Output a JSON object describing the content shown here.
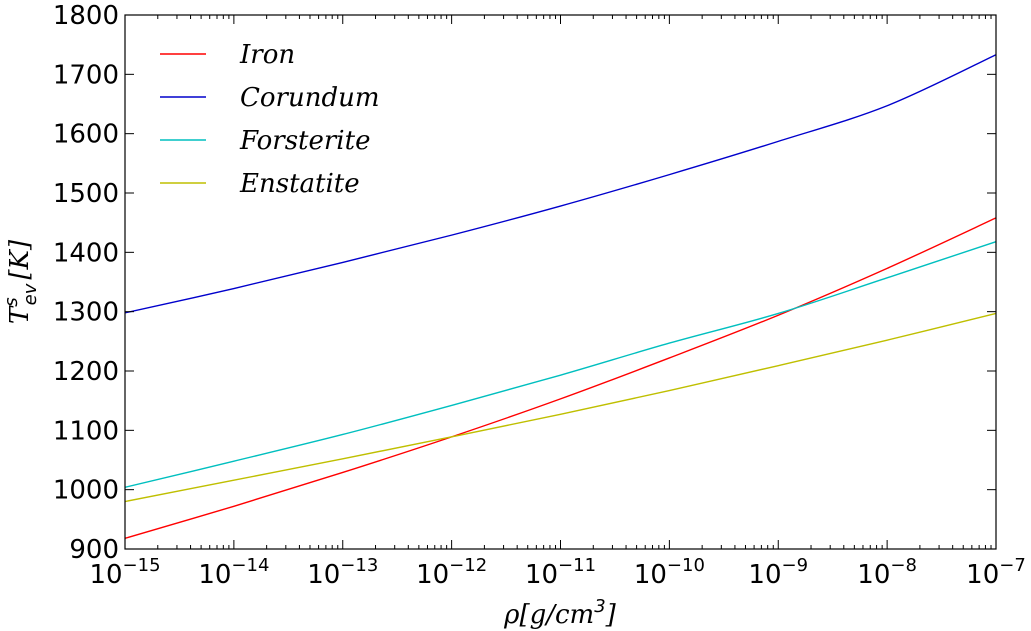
{
  "chart_data": {
    "type": "line",
    "title": "",
    "x_scale": "log",
    "xlim_log10": [
      -15,
      -7
    ],
    "ylim": [
      900,
      1800
    ],
    "x_ticks": [
      {
        "base": "10",
        "exp": "−15"
      },
      {
        "base": "10",
        "exp": "−14"
      },
      {
        "base": "10",
        "exp": "−13"
      },
      {
        "base": "10",
        "exp": "−12"
      },
      {
        "base": "10",
        "exp": "−11"
      },
      {
        "base": "10",
        "exp": "−10"
      },
      {
        "base": "10",
        "exp": "−9"
      },
      {
        "base": "10",
        "exp": "−8"
      },
      {
        "base": "10",
        "exp": "−7"
      }
    ],
    "y_ticks": [
      "900",
      "1000",
      "1100",
      "1200",
      "1300",
      "1400",
      "1500",
      "1600",
      "1700",
      "1800"
    ],
    "xlabel": {
      "rho": "ρ",
      "body": "[g/cm",
      "sup": "3",
      "close": "]"
    },
    "ylabel": {
      "T": "T",
      "sup": "s",
      "sub": "ev",
      "unit": "[K]"
    },
    "legend_position": "top-left",
    "x_log10": [
      -15,
      -14,
      -13,
      -12,
      -11,
      -10,
      -9,
      -8,
      -7
    ],
    "series": [
      {
        "name": "Iron",
        "color": "#ff0000",
        "values": [
          918,
          972,
          1029,
          1089,
          1153,
          1222,
          1294,
          1373,
          1458
        ]
      },
      {
        "name": "Corundum",
        "color": "#0000cc",
        "values": [
          1298,
          1339,
          1383,
          1429,
          1478,
          1531,
          1587,
          1647,
          1733
        ]
      },
      {
        "name": "Forsterite",
        "color": "#00bfbf",
        "values": [
          1004,
          1048,
          1093,
          1142,
          1193,
          1247,
          1297,
          1357,
          1418
        ]
      },
      {
        "name": "Enstatite",
        "color": "#bfbf00",
        "values": [
          980,
          1016,
          1052,
          1089,
          1127,
          1167,
          1209,
          1252,
          1297
        ]
      }
    ]
  }
}
